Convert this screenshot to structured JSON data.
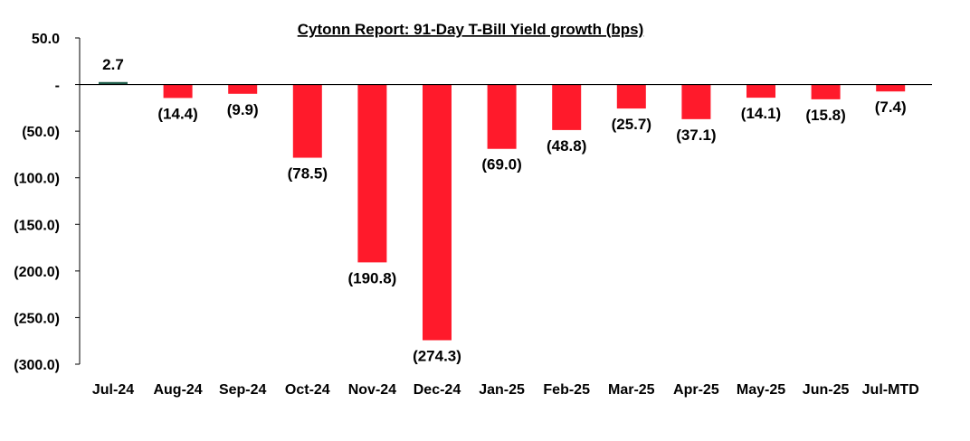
{
  "chart_data": {
    "type": "bar",
    "title": "Cytonn Report:  91-Day T-Bill Yield growth (bps)",
    "xlabel": "",
    "ylabel": "",
    "categories": [
      "Jul-24",
      "Aug-24",
      "Sep-24",
      "Oct-24",
      "Nov-24",
      "Dec-24",
      "Jan-25",
      "Feb-25",
      "Mar-25",
      "Apr-25",
      "May-25",
      "Jun-25",
      "Jul-MTD"
    ],
    "values": [
      2.7,
      -14.4,
      -9.9,
      -78.5,
      -190.8,
      -274.3,
      -69.0,
      -48.8,
      -25.7,
      -37.1,
      -14.1,
      -15.8,
      -7.4
    ],
    "data_labels": [
      "2.7",
      "(14.4)",
      "(9.9)",
      "(78.5)",
      "(190.8)",
      "(274.3)",
      "(69.0)",
      "(48.8)",
      "(25.7)",
      "(37.1)",
      "(14.1)",
      "(15.8)",
      "(7.4)"
    ],
    "y_ticks": [
      50,
      0,
      -50,
      -100,
      -150,
      -200,
      -250,
      -300
    ],
    "y_tick_labels": [
      "50.0",
      "-",
      "(50.0)",
      "(100.0)",
      "(150.0)",
      "(200.0)",
      "(250.0)",
      "(300.0)"
    ],
    "ylim": [
      -300,
      50
    ],
    "grid": false,
    "legend": "none",
    "colors": {
      "positive": "#1f5c4a",
      "negative": "#ff1a2b",
      "axis": "#000000"
    }
  }
}
